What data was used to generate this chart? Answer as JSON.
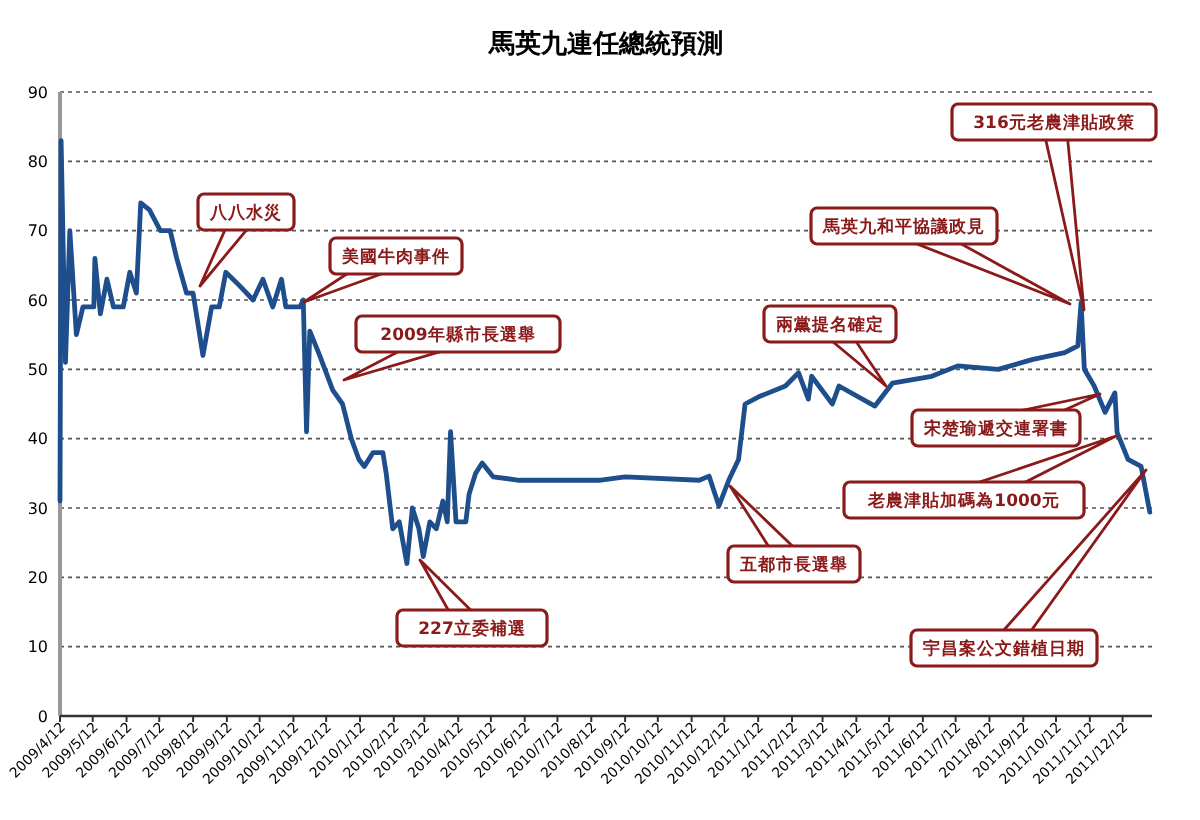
{
  "chart_data": {
    "type": "line",
    "title": "馬英九連任總統預測",
    "x": [
      "2009-04-12",
      "2009-04-13",
      "2009-04-17",
      "2009-04-21",
      "2009-04-27",
      "2009-05-03",
      "2009-05-13",
      "2009-05-14",
      "2009-05-19",
      "2009-05-25",
      "2009-05-31",
      "2009-06-09",
      "2009-06-15",
      "2009-06-21",
      "2009-06-25",
      "2009-07-03",
      "2009-07-13",
      "2009-07-22",
      "2009-07-28",
      "2009-08-06",
      "2009-08-12",
      "2009-08-18",
      "2009-08-21",
      "2009-08-29",
      "2009-09-05",
      "2009-09-11",
      "2009-09-24",
      "2009-10-06",
      "2009-10-15",
      "2009-10-24",
      "2009-11-01",
      "2009-11-05",
      "2009-11-18",
      "2009-11-21",
      "2009-11-24",
      "2009-11-27",
      "2009-12-06",
      "2009-12-18",
      "2009-12-27",
      "2010-01-04",
      "2010-01-11",
      "2010-01-16",
      "2010-01-24",
      "2010-02-02",
      "2010-02-05",
      "2010-02-11",
      "2010-02-17",
      "2010-02-24",
      "2010-03-01",
      "2010-03-07",
      "2010-03-11",
      "2010-03-17",
      "2010-03-23",
      "2010-03-29",
      "2010-04-02",
      "2010-04-05",
      "2010-04-10",
      "2010-04-19",
      "2010-04-22",
      "2010-04-28",
      "2010-05-04",
      "2010-05-14",
      "2010-06-07",
      "2010-08-19",
      "2010-09-12",
      "2010-11-19",
      "2010-11-28",
      "2010-12-07",
      "2010-12-16",
      "2010-12-25",
      "2010-12-31",
      "2011-01-12",
      "2011-02-06",
      "2011-02-18",
      "2011-02-27",
      "2011-03-02",
      "2011-03-21",
      "2011-03-27",
      "2011-04-29",
      "2011-05-15",
      "2011-06-20",
      "2011-07-14",
      "2011-08-20",
      "2011-09-20",
      "2011-10-20",
      "2011-11-01",
      "2011-11-04",
      "2011-11-07",
      "2011-11-16",
      "2011-11-26",
      "2011-12-05",
      "2011-12-07",
      "2011-12-17",
      "2011-12-29",
      "2012-01-06"
    ],
    "series": [
      {
        "color": "#1f4e8c",
        "values": [
          31,
          83,
          51,
          70,
          55,
          59,
          59,
          66,
          58,
          63,
          59,
          59,
          64,
          61,
          74,
          73,
          70,
          70,
          66,
          61,
          61,
          55,
          52,
          59,
          59,
          64,
          62,
          60,
          63,
          59,
          63,
          59,
          59,
          60,
          41,
          55.5,
          52,
          47,
          45,
          40,
          37,
          36,
          38,
          38,
          35,
          27,
          28,
          22,
          30,
          27,
          23,
          28,
          27,
          31,
          28,
          41,
          28,
          28,
          32,
          35,
          36.5,
          34.5,
          34,
          34,
          34.5,
          34,
          34.6,
          30.3,
          34,
          37,
          45,
          46,
          47.6,
          49.5,
          45.7,
          49,
          45,
          47.6,
          44.7,
          48,
          49,
          50.5,
          50,
          51.4,
          52.4,
          53.4,
          59.6,
          50,
          47.6,
          43.8,
          46.6,
          40.9,
          37,
          36,
          29.4
        ]
      }
    ],
    "xlim": [
      "2009-04-12",
      "2012-01-08"
    ],
    "xticks": [
      {
        "value": "2009-04-12",
        "label": "2009/4/12"
      },
      {
        "value": "2009-05-12",
        "label": "2009/5/12"
      },
      {
        "value": "2009-06-12",
        "label": "2009/6/12"
      },
      {
        "value": "2009-07-12",
        "label": "2009/7/12"
      },
      {
        "value": "2009-08-12",
        "label": "2009/8/12"
      },
      {
        "value": "2009-09-12",
        "label": "2009/9/12"
      },
      {
        "value": "2009-10-12",
        "label": "2009/10/12"
      },
      {
        "value": "2009-11-12",
        "label": "2009/11/12"
      },
      {
        "value": "2009-12-12",
        "label": "2009/12/12"
      },
      {
        "value": "2010-01-12",
        "label": "2010/1/12"
      },
      {
        "value": "2010-02-12",
        "label": "2010/2/12"
      },
      {
        "value": "2010-03-12",
        "label": "2010/3/12"
      },
      {
        "value": "2010-04-12",
        "label": "2010/4/12"
      },
      {
        "value": "2010-05-12",
        "label": "2010/5/12"
      },
      {
        "value": "2010-06-12",
        "label": "2010/6/12"
      },
      {
        "value": "2010-07-12",
        "label": "2010/7/12"
      },
      {
        "value": "2010-08-12",
        "label": "2010/8/12"
      },
      {
        "value": "2010-09-12",
        "label": "2010/9/12"
      },
      {
        "value": "2010-10-12",
        "label": "2010/10/12"
      },
      {
        "value": "2010-11-12",
        "label": "2010/11/12"
      },
      {
        "value": "2010-12-12",
        "label": "2010/12/12"
      },
      {
        "value": "2011-01-12",
        "label": "2011/1/12"
      },
      {
        "value": "2011-02-12",
        "label": "2011/2/12"
      },
      {
        "value": "2011-03-12",
        "label": "2011/3/12"
      },
      {
        "value": "2011-04-12",
        "label": "2011/4/12"
      },
      {
        "value": "2011-05-12",
        "label": "2011/5/12"
      },
      {
        "value": "2011-06-12",
        "label": "2011/6/12"
      },
      {
        "value": "2011-07-12",
        "label": "2011/7/12"
      },
      {
        "value": "2011-08-12",
        "label": "2011/8/12"
      },
      {
        "value": "2011-09-12",
        "label": "2011/9/12"
      },
      {
        "value": "2011-10-12",
        "label": "2011/10/12"
      },
      {
        "value": "2011-11-12",
        "label": "2011/11/12"
      },
      {
        "value": "2011-12-12",
        "label": "2011/12/12"
      }
    ],
    "ylim": [
      0,
      90
    ],
    "yticks": [
      0,
      10,
      20,
      30,
      40,
      50,
      60,
      70,
      80,
      90
    ],
    "grid": "y",
    "annotations": [
      "八八水災",
      "美國牛肉事件",
      "2009年縣市長選舉",
      "227立委補選",
      "五都市長選舉",
      "兩黨提名確定",
      "馬英九和平協議政見",
      "316元老農津貼政策",
      "宋楚瑜遞交連署書",
      "老農津貼加碼為1000元",
      "宇昌案公文錯植日期"
    ]
  }
}
